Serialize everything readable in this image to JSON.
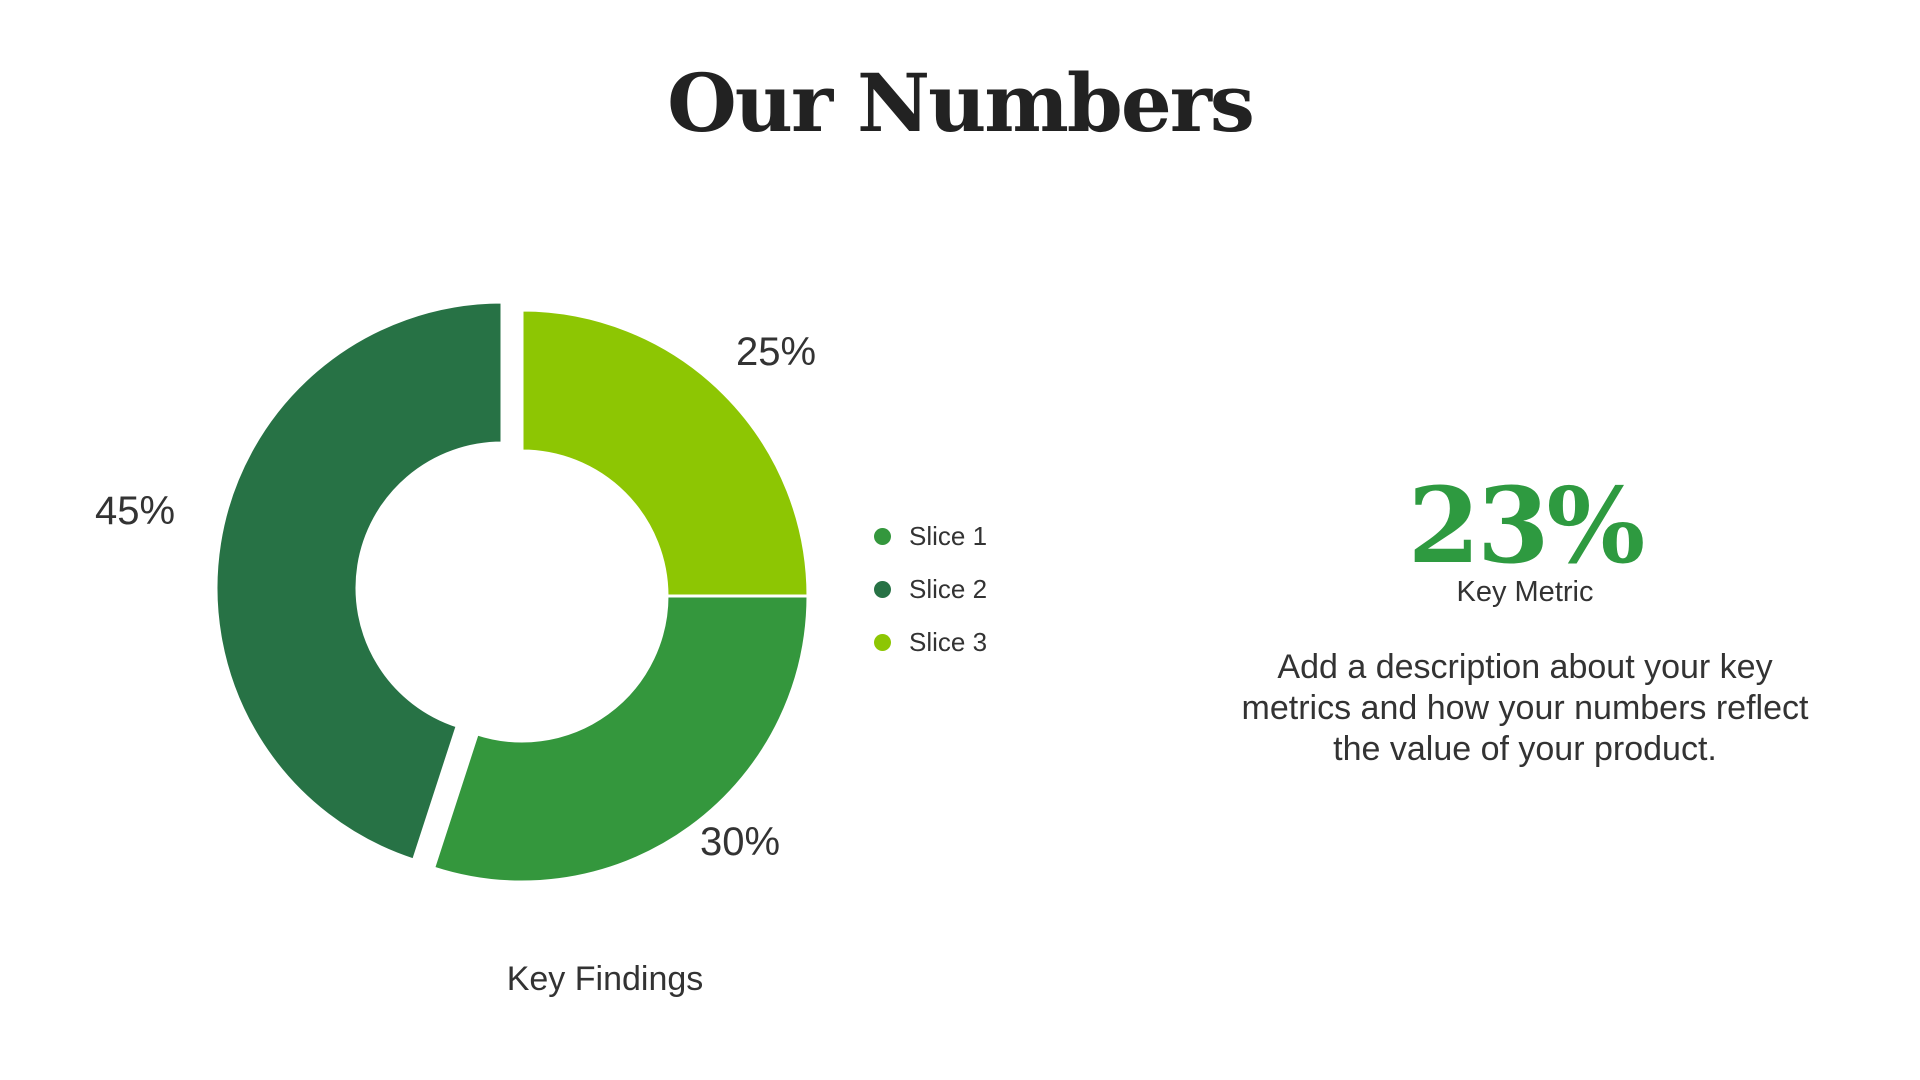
{
  "header": {
    "title": "Our Numbers"
  },
  "chart_data": {
    "type": "pie",
    "variant": "donut",
    "title": "",
    "caption": "Key Findings",
    "categories": [
      "Slice 1",
      "Slice 2",
      "Slice 3"
    ],
    "values": [
      30,
      45,
      25
    ],
    "data_labels": [
      "30%",
      "45%",
      "25%"
    ],
    "colors": [
      "#34973d",
      "#277245",
      "#8dc603"
    ],
    "legend_position": "right",
    "exploded_slice": "Slice 2"
  },
  "metric": {
    "value": "23%",
    "label": "Key Metric",
    "description": "Add a description about your key metrics and how your numbers reflect the value of your product."
  }
}
